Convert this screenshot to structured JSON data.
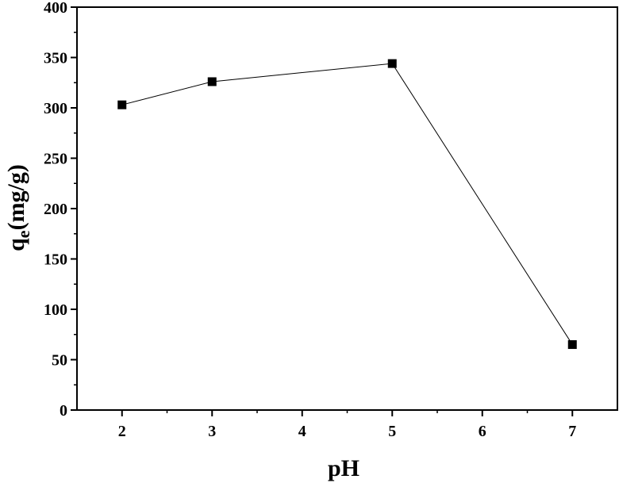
{
  "chart_data": {
    "type": "line",
    "title": "",
    "xlabel": "pH",
    "ylabel_main": "q",
    "ylabel_sub": "e",
    "ylabel_rest": "(mg/g)",
    "x": [
      2,
      3,
      5,
      7
    ],
    "series": [
      {
        "values": [
          303,
          326,
          344,
          65
        ]
      }
    ],
    "xlim": [
      1.5,
      7.5
    ],
    "ylim": [
      0,
      400
    ],
    "xticks": [
      2,
      3,
      4,
      5,
      6,
      7
    ],
    "yticks": [
      0,
      50,
      100,
      150,
      200,
      250,
      300,
      350,
      400
    ],
    "grid": false,
    "marker": "square",
    "colors": {
      "line": "#000000",
      "marker": "#000000",
      "axis": "#000000"
    }
  }
}
